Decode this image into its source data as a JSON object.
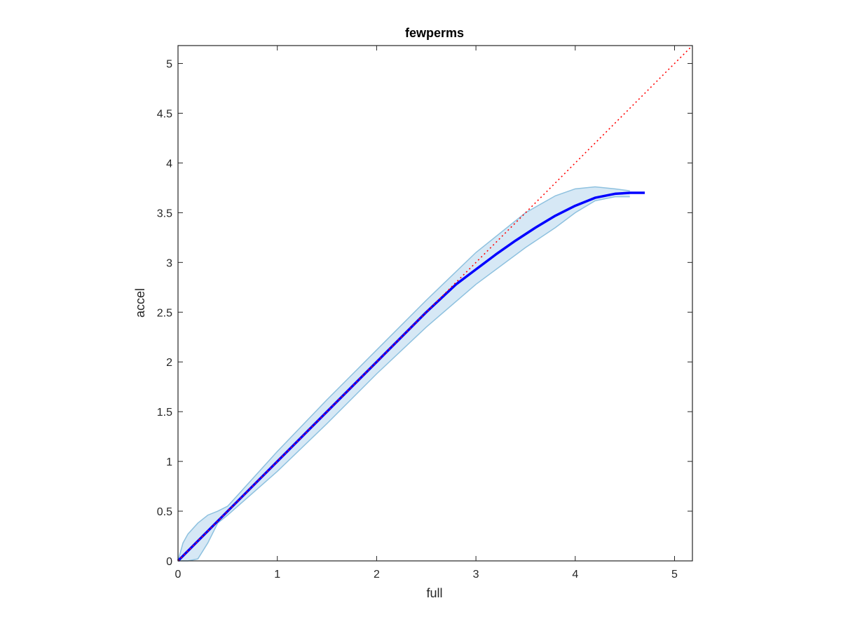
{
  "chart_data": {
    "type": "line",
    "title": "fewperms",
    "xlabel": "full",
    "ylabel": "accel",
    "xlim": [
      0,
      5.18
    ],
    "ylim": [
      0,
      5.18
    ],
    "xticks": [
      0,
      1,
      2,
      3,
      4,
      5
    ],
    "yticks": [
      0,
      0.5,
      1,
      1.5,
      2,
      2.5,
      3,
      3.5,
      4,
      4.5,
      5
    ],
    "xtick_labels": [
      "0",
      "1",
      "2",
      "3",
      "4",
      "5"
    ],
    "ytick_labels": [
      "0",
      "0.5",
      "1",
      "1.5",
      "2",
      "2.5",
      "3",
      "3.5",
      "4",
      "4.5",
      "5"
    ],
    "grid": false,
    "colors": {
      "band_fill": "#d6e8f5",
      "band_edge": "#8ec1df",
      "mean_line": "#0000ff",
      "reference_line": "#ff0000",
      "axes": "#262626"
    },
    "series": [
      {
        "kind": "band",
        "x": [
          0,
          0.05,
          0.1,
          0.2,
          0.3,
          0.4,
          0.5,
          1,
          1.5,
          2,
          2.5,
          3,
          3.5,
          3.8,
          4,
          4.2,
          4.4,
          4.55
        ],
        "upper": [
          0,
          0.18,
          0.27,
          0.38,
          0.46,
          0.5,
          0.55,
          1.1,
          1.62,
          2.12,
          2.62,
          3.1,
          3.5,
          3.67,
          3.74,
          3.76,
          3.74,
          3.72
        ],
        "lower": [
          0,
          0,
          0,
          0.02,
          0.18,
          0.38,
          0.46,
          0.9,
          1.38,
          1.88,
          2.35,
          2.78,
          3.15,
          3.35,
          3.5,
          3.62,
          3.66,
          3.66
        ]
      },
      {
        "kind": "mean",
        "x": [
          0,
          0.5,
          1,
          1.5,
          2,
          2.5,
          2.8,
          3.0,
          3.2,
          3.4,
          3.6,
          3.8,
          4.0,
          4.2,
          4.4,
          4.55,
          4.7
        ],
        "y": [
          0,
          0.5,
          1,
          1.5,
          2,
          2.5,
          2.78,
          2.93,
          3.08,
          3.22,
          3.35,
          3.47,
          3.57,
          3.65,
          3.69,
          3.7,
          3.7
        ]
      },
      {
        "kind": "reference",
        "x": [
          0,
          5.18
        ],
        "y": [
          0,
          5.18
        ]
      }
    ]
  }
}
